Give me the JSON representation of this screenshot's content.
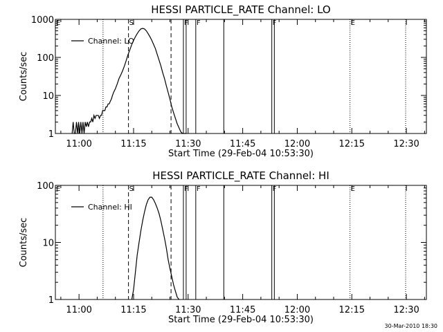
{
  "footer": {
    "timestamp": "30-Mar-2010 18:30"
  },
  "chart_data": [
    {
      "type": "line",
      "title": "HESSI PARTICLE_RATE Channel: LO",
      "xlabel": "Start Time (29-Feb-04 10:53:30)",
      "ylabel": "Counts/sec",
      "x_unit": "minutes since 10:53:30",
      "xlim": [
        0,
        102
      ],
      "ylim": [
        1,
        1000
      ],
      "yscale": "log",
      "x_ticks": [
        {
          "label": "11:00",
          "value": 6.5
        },
        {
          "label": "11:15",
          "value": 21.5
        },
        {
          "label": "11:30",
          "value": 36.5
        },
        {
          "label": "11:45",
          "value": 51.5
        },
        {
          "label": "12:00",
          "value": 66.5
        },
        {
          "label": "12:15",
          "value": 81.5
        },
        {
          "label": "12:30",
          "value": 96.5
        }
      ],
      "y_ticks": [
        {
          "label": "1",
          "value": 1
        },
        {
          "label": "10",
          "value": 10
        },
        {
          "label": "100",
          "value": 100
        },
        {
          "label": "1000",
          "value": 1000
        }
      ],
      "legend": {
        "position": "top-left",
        "entries": [
          "Channel: LO"
        ]
      },
      "series": [
        {
          "name": "Channel: LO",
          "x": [
            4.6,
            4.9,
            5.2,
            5.5,
            5.8,
            6.1,
            6.4,
            6.7,
            7.0,
            7.3,
            7.6,
            7.9,
            8.2,
            8.5,
            8.8,
            9.1,
            9.4,
            9.7,
            10.0,
            10.3,
            10.6,
            10.9,
            11.2,
            11.5,
            11.8,
            12.1,
            12.4,
            12.7,
            13.0,
            13.3,
            13.6,
            13.9,
            14.2,
            14.5,
            14.8,
            15.1,
            15.4,
            15.7,
            16.0,
            16.5,
            17.0,
            17.5,
            18.0,
            18.5,
            19.0,
            19.5,
            20.0,
            20.5,
            21.0,
            21.5,
            22.0,
            22.5,
            23.0,
            23.5,
            24.0,
            24.5,
            25.0,
            25.5,
            26.0,
            26.5,
            27.0,
            27.5,
            28.0,
            28.5,
            29.0,
            29.5,
            30.0,
            30.5,
            31.0,
            31.5,
            32.0,
            32.5,
            33.0,
            33.5,
            34.0,
            34.5,
            35.0,
            35.5,
            36.0
          ],
          "y": [
            1,
            2,
            1,
            1,
            2,
            1,
            2,
            1,
            2,
            1,
            2,
            1,
            2,
            1.5,
            2,
            1.5,
            2,
            2,
            2.5,
            2,
            3,
            2.5,
            3,
            3,
            3,
            2.5,
            3,
            3,
            4,
            4,
            4,
            5,
            5,
            6,
            6,
            7,
            8,
            10,
            12,
            15,
            20,
            28,
            35,
            45,
            60,
            85,
            120,
            160,
            220,
            280,
            350,
            420,
            500,
            560,
            580,
            560,
            500,
            420,
            350,
            280,
            220,
            170,
            120,
            85,
            60,
            40,
            28,
            18,
            12,
            8,
            5,
            3.5,
            2.5,
            1.8,
            1.4,
            1.1,
            1,
            1,
            1
          ]
        }
      ],
      "annotations": [
        {
          "label": "E",
          "x": 0,
          "style": "dotted"
        },
        {
          "label": "",
          "x": 13.1,
          "style": "dotted"
        },
        {
          "label": "S",
          "x": 20.1,
          "style": "dashed"
        },
        {
          "label": "",
          "x": 31.8,
          "style": "dashed"
        },
        {
          "label": "F",
          "x": 35.2,
          "style": "solid"
        },
        {
          "label": "",
          "x": 35.95,
          "style": "solid"
        },
        {
          "label": "F",
          "x": 38.6,
          "style": "solid"
        },
        {
          "label": "",
          "x": 46.3,
          "style": "solid"
        },
        {
          "label": "F",
          "x": 59.5,
          "style": "solid"
        },
        {
          "label": "",
          "x": 60.2,
          "style": "solid"
        },
        {
          "label": "E",
          "x": 81.0,
          "style": "dotted"
        },
        {
          "label": "",
          "x": 96.3,
          "style": "dotted"
        }
      ]
    },
    {
      "type": "line",
      "title": "HESSI PARTICLE_RATE Channel: HI",
      "xlabel": "Start Time (29-Feb-04 10:53:30)",
      "ylabel": "Counts/sec",
      "x_unit": "minutes since 10:53:30",
      "xlim": [
        0,
        102
      ],
      "ylim": [
        1,
        100
      ],
      "yscale": "log",
      "x_ticks": [
        {
          "label": "11:00",
          "value": 6.5
        },
        {
          "label": "11:15",
          "value": 21.5
        },
        {
          "label": "11:30",
          "value": 36.5
        },
        {
          "label": "11:45",
          "value": 51.5
        },
        {
          "label": "12:00",
          "value": 66.5
        },
        {
          "label": "12:15",
          "value": 81.5
        },
        {
          "label": "12:30",
          "value": 96.5
        }
      ],
      "y_ticks": [
        {
          "label": "1",
          "value": 1
        },
        {
          "label": "10",
          "value": 10
        },
        {
          "label": "100",
          "value": 100
        }
      ],
      "legend": {
        "position": "top-left",
        "entries": [
          "Channel: HI"
        ]
      },
      "series": [
        {
          "name": "Channel: HI",
          "x": [
            21.0,
            21.5,
            22.0,
            22.5,
            23.0,
            23.5,
            24.0,
            24.5,
            25.0,
            25.5,
            26.0,
            26.5,
            27.0,
            27.5,
            28.0,
            28.5,
            29.0,
            29.5,
            30.0,
            30.5,
            31.0,
            31.5,
            32.0,
            32.5,
            33.0,
            33.5,
            34.0
          ],
          "y": [
            1,
            1.5,
            3,
            6,
            10,
            16,
            24,
            34,
            46,
            56,
            62,
            62,
            56,
            48,
            40,
            32,
            24,
            17,
            12,
            8,
            5,
            3.5,
            2.5,
            1.8,
            1.4,
            1.1,
            1
          ]
        }
      ],
      "annotations": [
        {
          "label": "E",
          "x": 0,
          "style": "dotted"
        },
        {
          "label": "",
          "x": 13.1,
          "style": "dotted"
        },
        {
          "label": "S",
          "x": 20.1,
          "style": "dashed"
        },
        {
          "label": "",
          "x": 31.8,
          "style": "dashed"
        },
        {
          "label": "F",
          "x": 35.2,
          "style": "solid"
        },
        {
          "label": "",
          "x": 35.95,
          "style": "solid"
        },
        {
          "label": "F",
          "x": 38.6,
          "style": "solid"
        },
        {
          "label": "",
          "x": 46.3,
          "style": "solid"
        },
        {
          "label": "F",
          "x": 59.5,
          "style": "solid"
        },
        {
          "label": "",
          "x": 60.2,
          "style": "solid"
        },
        {
          "label": "E",
          "x": 81.0,
          "style": "dotted"
        },
        {
          "label": "",
          "x": 96.3,
          "style": "dotted"
        }
      ]
    }
  ]
}
